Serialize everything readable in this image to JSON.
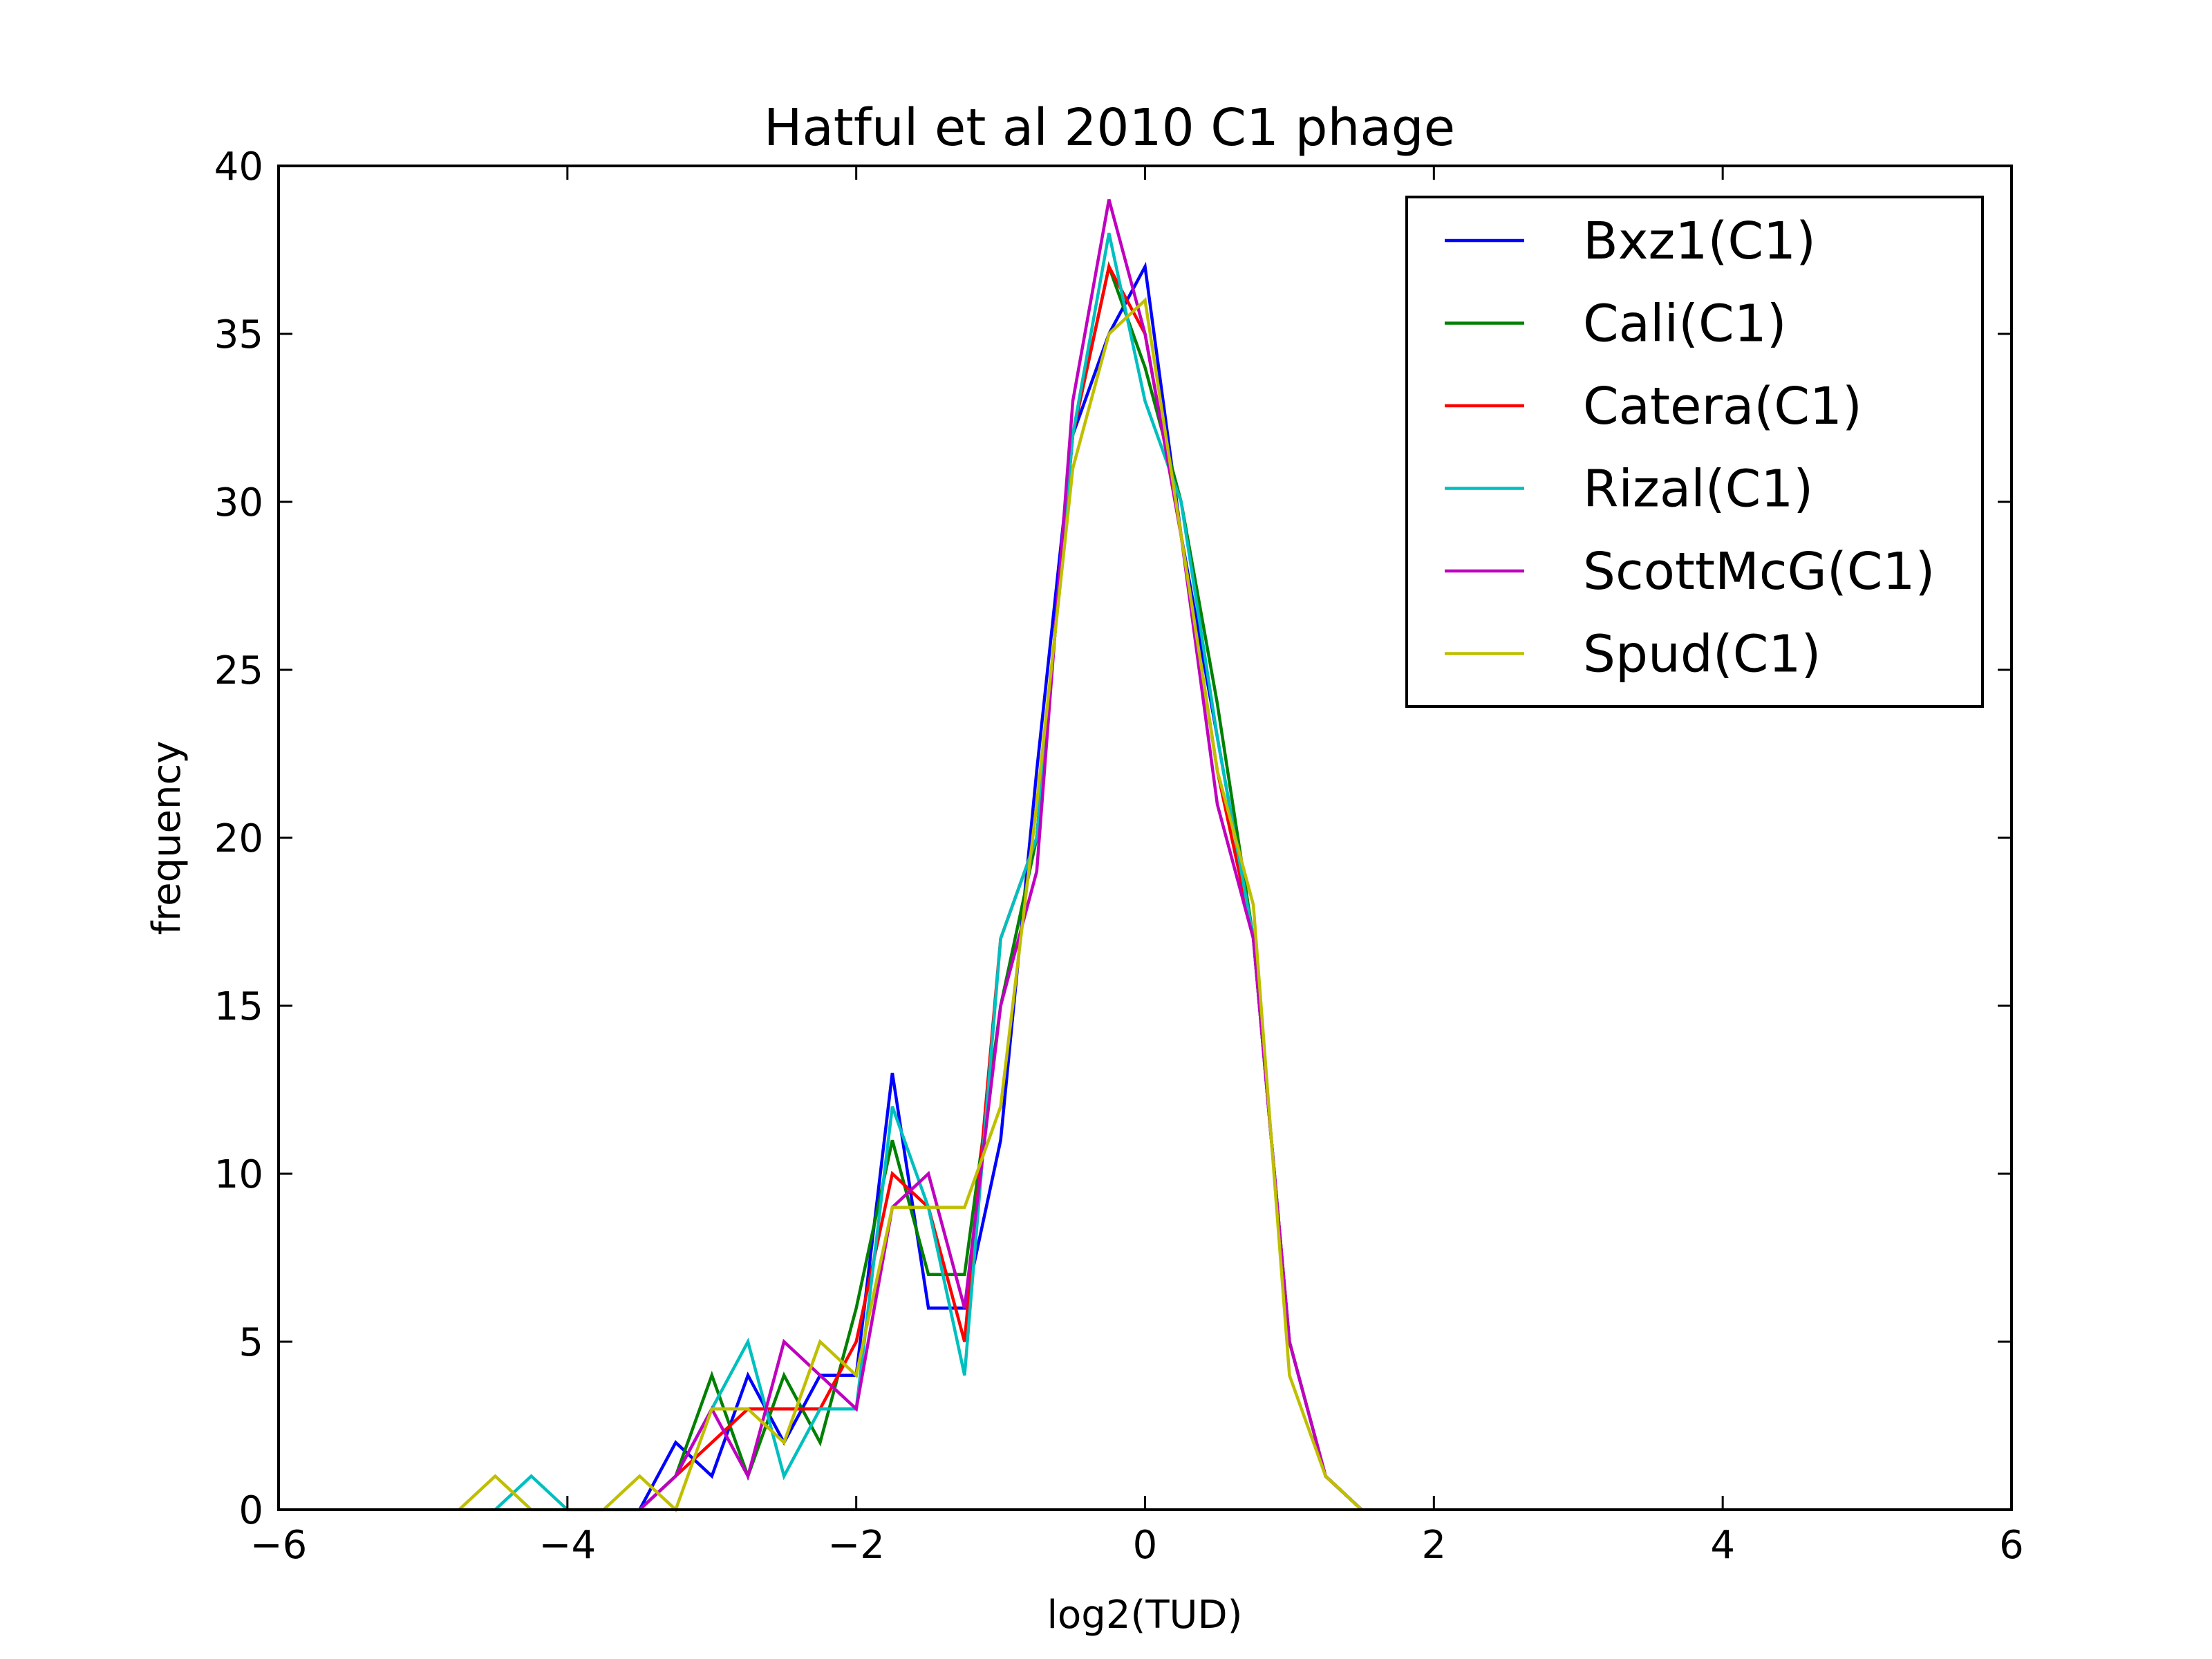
{
  "chart_data": {
    "type": "line",
    "title": "Hatful et al 2010 C1 phage",
    "xlabel": "log2(TUD)",
    "ylabel": "frequency",
    "xlim": [
      -6,
      6
    ],
    "ylim": [
      0,
      40
    ],
    "xticks": [
      -6,
      -4,
      -2,
      0,
      2,
      4,
      6
    ],
    "xtick_labels": [
      "−6",
      "−4",
      "−2",
      "0",
      "2",
      "4",
      "6"
    ],
    "yticks": [
      0,
      5,
      10,
      15,
      20,
      25,
      30,
      35,
      40
    ],
    "ytick_labels": [
      "0",
      "5",
      "10",
      "15",
      "20",
      "25",
      "30",
      "35",
      "40"
    ],
    "grid": false,
    "legend_position": "top-right",
    "series": [
      {
        "name": "Bxz1(C1)",
        "color": "#0000ff",
        "points": [
          [
            -3.5,
            0
          ],
          [
            -3.25,
            2
          ],
          [
            -3.0,
            1
          ],
          [
            -2.75,
            4
          ],
          [
            -2.5,
            2
          ],
          [
            -2.25,
            4
          ],
          [
            -2.0,
            4
          ],
          [
            -1.75,
            13
          ],
          [
            -1.5,
            6
          ],
          [
            -1.25,
            6
          ],
          [
            -1.0,
            11
          ],
          [
            -0.75,
            22
          ],
          [
            -0.5,
            32
          ],
          [
            -0.25,
            35
          ],
          [
            0.0,
            37
          ],
          [
            0.25,
            29
          ],
          [
            0.5,
            23
          ],
          [
            0.75,
            17
          ],
          [
            1.0,
            5
          ],
          [
            1.25,
            1
          ],
          [
            1.5,
            0
          ]
        ]
      },
      {
        "name": "Cali(C1)",
        "color": "#008000",
        "points": [
          [
            -3.5,
            0
          ],
          [
            -3.25,
            1
          ],
          [
            -3.0,
            4
          ],
          [
            -2.75,
            1
          ],
          [
            -2.5,
            4
          ],
          [
            -2.25,
            2
          ],
          [
            -2.0,
            6
          ],
          [
            -1.75,
            11
          ],
          [
            -1.5,
            7
          ],
          [
            -1.25,
            7
          ],
          [
            -1.0,
            15
          ],
          [
            -0.75,
            20
          ],
          [
            -0.5,
            32
          ],
          [
            -0.25,
            37
          ],
          [
            0.0,
            34
          ],
          [
            0.25,
            30
          ],
          [
            0.5,
            24
          ],
          [
            0.75,
            17
          ],
          [
            1.0,
            5
          ],
          [
            1.25,
            1
          ],
          [
            1.5,
            0
          ]
        ]
      },
      {
        "name": "Catera(C1)",
        "color": "#ff0000",
        "points": [
          [
            -3.5,
            0
          ],
          [
            -3.25,
            1
          ],
          [
            -3.0,
            2
          ],
          [
            -2.75,
            3
          ],
          [
            -2.5,
            3
          ],
          [
            -2.25,
            3
          ],
          [
            -2.0,
            5
          ],
          [
            -1.75,
            10
          ],
          [
            -1.5,
            9
          ],
          [
            -1.25,
            5
          ],
          [
            -1.0,
            17
          ],
          [
            -0.75,
            20
          ],
          [
            -0.5,
            32
          ],
          [
            -0.25,
            37
          ],
          [
            0.0,
            35
          ],
          [
            0.25,
            29
          ],
          [
            0.5,
            22
          ],
          [
            0.75,
            17
          ],
          [
            1.0,
            5
          ],
          [
            1.25,
            1
          ],
          [
            1.5,
            0
          ]
        ]
      },
      {
        "name": "Rizal(C1)",
        "color": "#00bfbf",
        "points": [
          [
            -4.5,
            0
          ],
          [
            -4.25,
            1
          ],
          [
            -4.0,
            0
          ],
          [
            -3.5,
            0
          ],
          [
            -3.25,
            1
          ],
          [
            -3.0,
            3
          ],
          [
            -2.75,
            5
          ],
          [
            -2.5,
            1
          ],
          [
            -2.25,
            3
          ],
          [
            -2.0,
            3
          ],
          [
            -1.75,
            12
          ],
          [
            -1.5,
            9
          ],
          [
            -1.25,
            4
          ],
          [
            -1.0,
            17
          ],
          [
            -0.75,
            20
          ],
          [
            -0.5,
            32
          ],
          [
            -0.25,
            38
          ],
          [
            0.0,
            33
          ],
          [
            0.25,
            30
          ],
          [
            0.5,
            23
          ],
          [
            0.75,
            17
          ],
          [
            1.0,
            5
          ],
          [
            1.25,
            1
          ],
          [
            1.5,
            0
          ]
        ]
      },
      {
        "name": "ScottMcG(C1)",
        "color": "#bf00bf",
        "points": [
          [
            -3.5,
            0
          ],
          [
            -3.25,
            1
          ],
          [
            -3.0,
            3
          ],
          [
            -2.75,
            1
          ],
          [
            -2.5,
            5
          ],
          [
            -2.25,
            4
          ],
          [
            -2.0,
            3
          ],
          [
            -1.75,
            9
          ],
          [
            -1.5,
            10
          ],
          [
            -1.25,
            6
          ],
          [
            -1.0,
            15
          ],
          [
            -0.75,
            19
          ],
          [
            -0.5,
            33
          ],
          [
            -0.25,
            39
          ],
          [
            0.0,
            35
          ],
          [
            0.25,
            29
          ],
          [
            0.5,
            21
          ],
          [
            0.75,
            17
          ],
          [
            1.0,
            5
          ],
          [
            1.25,
            1
          ],
          [
            1.5,
            0
          ]
        ]
      },
      {
        "name": "Spud(C1)",
        "color": "#bfbf00",
        "points": [
          [
            -4.75,
            0
          ],
          [
            -4.5,
            1
          ],
          [
            -4.25,
            0
          ],
          [
            -3.75,
            0
          ],
          [
            -3.5,
            1
          ],
          [
            -3.25,
            0
          ],
          [
            -3.0,
            3
          ],
          [
            -2.75,
            3
          ],
          [
            -2.5,
            2
          ],
          [
            -2.25,
            5
          ],
          [
            -2.0,
            4
          ],
          [
            -1.75,
            9
          ],
          [
            -1.5,
            9
          ],
          [
            -1.25,
            9
          ],
          [
            -1.0,
            12
          ],
          [
            -0.75,
            21
          ],
          [
            -0.5,
            31
          ],
          [
            -0.25,
            35
          ],
          [
            0.0,
            36
          ],
          [
            0.25,
            29
          ],
          [
            0.5,
            22
          ],
          [
            0.75,
            18
          ],
          [
            1.0,
            4
          ],
          [
            1.25,
            1
          ],
          [
            1.5,
            0
          ]
        ]
      }
    ]
  }
}
